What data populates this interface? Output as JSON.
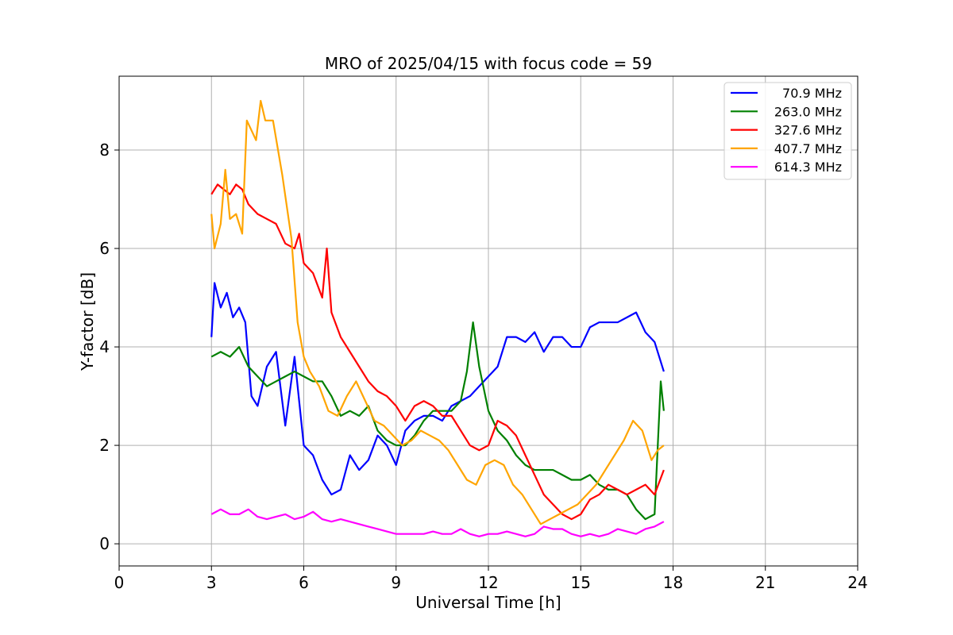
{
  "chart_data": {
    "type": "line",
    "title": "MRO of 2025/04/15 with focus code = 59",
    "xlabel": "Universal Time [h]",
    "ylabel": "Y-factor [dB]",
    "xlim": [
      0,
      24
    ],
    "ylim": [
      -0.45,
      9.5
    ],
    "xticks": [
      0,
      3,
      6,
      9,
      12,
      15,
      18,
      21,
      24
    ],
    "yticks": [
      0,
      2,
      4,
      6,
      8
    ],
    "grid": true,
    "legend_position": "top-right",
    "series": [
      {
        "name": "70.9 MHz",
        "color": "#0000ff",
        "x": [
          3.0,
          3.1,
          3.3,
          3.5,
          3.7,
          3.9,
          4.1,
          4.3,
          4.5,
          4.8,
          5.1,
          5.4,
          5.7,
          6.0,
          6.3,
          6.6,
          6.9,
          7.2,
          7.5,
          7.8,
          8.1,
          8.4,
          8.7,
          9.0,
          9.3,
          9.6,
          9.9,
          10.2,
          10.5,
          10.8,
          11.1,
          11.4,
          11.7,
          12.0,
          12.3,
          12.6,
          12.9,
          13.2,
          13.5,
          13.8,
          14.1,
          14.4,
          14.7,
          15.0,
          15.3,
          15.6,
          15.9,
          16.2,
          16.5,
          16.8,
          17.1,
          17.4,
          17.7
        ],
        "y": [
          4.2,
          5.3,
          4.8,
          5.1,
          4.6,
          4.8,
          4.5,
          3.0,
          2.8,
          3.6,
          3.9,
          2.4,
          3.8,
          2.0,
          1.8,
          1.3,
          1.0,
          1.1,
          1.8,
          1.5,
          1.7,
          2.2,
          2.0,
          1.6,
          2.3,
          2.5,
          2.6,
          2.6,
          2.5,
          2.8,
          2.9,
          3.0,
          3.2,
          3.4,
          3.6,
          4.2,
          4.2,
          4.1,
          4.3,
          3.9,
          4.2,
          4.2,
          4.0,
          4.0,
          4.4,
          4.5,
          4.5,
          4.5,
          4.6,
          4.7,
          4.3,
          4.1,
          3.5
        ]
      },
      {
        "name": "263.0 MHz",
        "color": "#008000",
        "x": [
          3.0,
          3.3,
          3.6,
          3.9,
          4.2,
          4.5,
          4.8,
          5.1,
          5.4,
          5.7,
          6.0,
          6.3,
          6.6,
          6.9,
          7.2,
          7.5,
          7.8,
          8.1,
          8.4,
          8.7,
          9.0,
          9.3,
          9.6,
          9.9,
          10.2,
          10.5,
          10.8,
          11.1,
          11.3,
          11.5,
          11.7,
          12.0,
          12.3,
          12.6,
          12.9,
          13.2,
          13.5,
          13.8,
          14.1,
          14.4,
          14.7,
          15.0,
          15.3,
          15.6,
          15.9,
          16.2,
          16.5,
          16.8,
          17.1,
          17.4,
          17.6,
          17.7
        ],
        "y": [
          3.8,
          3.9,
          3.8,
          4.0,
          3.6,
          3.4,
          3.2,
          3.3,
          3.4,
          3.5,
          3.4,
          3.3,
          3.3,
          3.0,
          2.6,
          2.7,
          2.6,
          2.8,
          2.3,
          2.1,
          2.0,
          2.0,
          2.2,
          2.5,
          2.7,
          2.7,
          2.7,
          2.9,
          3.5,
          4.5,
          3.6,
          2.7,
          2.3,
          2.1,
          1.8,
          1.6,
          1.5,
          1.5,
          1.5,
          1.4,
          1.3,
          1.3,
          1.4,
          1.2,
          1.1,
          1.1,
          1.0,
          0.7,
          0.5,
          0.6,
          3.3,
          2.7
        ]
      },
      {
        "name": "327.6 MHz",
        "color": "#ff0000",
        "x": [
          3.0,
          3.2,
          3.4,
          3.6,
          3.8,
          4.0,
          4.2,
          4.5,
          4.8,
          5.1,
          5.4,
          5.7,
          5.85,
          6.0,
          6.3,
          6.6,
          6.75,
          6.9,
          7.2,
          7.5,
          7.8,
          8.1,
          8.4,
          8.7,
          9.0,
          9.3,
          9.6,
          9.9,
          10.2,
          10.5,
          10.8,
          11.1,
          11.4,
          11.7,
          12.0,
          12.3,
          12.6,
          12.9,
          13.2,
          13.5,
          13.8,
          14.1,
          14.4,
          14.7,
          15.0,
          15.3,
          15.6,
          15.9,
          16.2,
          16.5,
          16.8,
          17.1,
          17.4,
          17.7
        ],
        "y": [
          7.1,
          7.3,
          7.2,
          7.1,
          7.3,
          7.2,
          6.9,
          6.7,
          6.6,
          6.5,
          6.1,
          6.0,
          6.3,
          5.7,
          5.5,
          5.0,
          6.0,
          4.7,
          4.2,
          3.9,
          3.6,
          3.3,
          3.1,
          3.0,
          2.8,
          2.5,
          2.8,
          2.9,
          2.8,
          2.6,
          2.6,
          2.3,
          2.0,
          1.9,
          2.0,
          2.5,
          2.4,
          2.2,
          1.8,
          1.4,
          1.0,
          0.8,
          0.6,
          0.5,
          0.6,
          0.9,
          1.0,
          1.2,
          1.1,
          1.0,
          1.1,
          1.2,
          1.0,
          1.5
        ]
      },
      {
        "name": "407.7 MHz",
        "color": "#ffa500",
        "x": [
          3.0,
          3.1,
          3.3,
          3.45,
          3.6,
          3.8,
          4.0,
          4.15,
          4.3,
          4.45,
          4.6,
          4.75,
          5.0,
          5.3,
          5.6,
          5.8,
          6.0,
          6.2,
          6.5,
          6.8,
          7.1,
          7.4,
          7.7,
          8.0,
          8.3,
          8.6,
          8.9,
          9.2,
          9.5,
          9.8,
          10.1,
          10.4,
          10.7,
          11.0,
          11.3,
          11.6,
          11.9,
          12.2,
          12.5,
          12.8,
          13.1,
          13.4,
          13.7,
          14.0,
          14.3,
          14.6,
          14.9,
          15.2,
          15.5,
          15.8,
          16.1,
          16.4,
          16.7,
          17.0,
          17.3,
          17.5,
          17.7
        ],
        "y": [
          6.7,
          6.0,
          6.5,
          7.6,
          6.6,
          6.7,
          6.3,
          8.6,
          8.4,
          8.2,
          9.0,
          8.6,
          8.6,
          7.5,
          6.2,
          4.5,
          3.8,
          3.5,
          3.2,
          2.7,
          2.6,
          3.0,
          3.3,
          2.9,
          2.5,
          2.4,
          2.2,
          2.0,
          2.1,
          2.3,
          2.2,
          2.1,
          1.9,
          1.6,
          1.3,
          1.2,
          1.6,
          1.7,
          1.6,
          1.2,
          1.0,
          0.7,
          0.4,
          0.5,
          0.6,
          0.7,
          0.8,
          1.0,
          1.2,
          1.5,
          1.8,
          2.1,
          2.5,
          2.3,
          1.7,
          1.9,
          2.0
        ]
      },
      {
        "name": "614.3 MHz",
        "color": "#ff00ff",
        "x": [
          3.0,
          3.3,
          3.6,
          3.9,
          4.2,
          4.5,
          4.8,
          5.1,
          5.4,
          5.7,
          6.0,
          6.3,
          6.6,
          6.9,
          7.2,
          7.5,
          7.8,
          8.1,
          8.4,
          8.7,
          9.0,
          9.3,
          9.6,
          9.9,
          10.2,
          10.5,
          10.8,
          11.1,
          11.4,
          11.7,
          12.0,
          12.3,
          12.6,
          12.9,
          13.2,
          13.5,
          13.8,
          14.1,
          14.4,
          14.7,
          15.0,
          15.3,
          15.6,
          15.9,
          16.2,
          16.5,
          16.8,
          17.1,
          17.4,
          17.7
        ],
        "y": [
          0.6,
          0.7,
          0.6,
          0.6,
          0.7,
          0.55,
          0.5,
          0.55,
          0.6,
          0.5,
          0.55,
          0.65,
          0.5,
          0.45,
          0.5,
          0.45,
          0.4,
          0.35,
          0.3,
          0.25,
          0.2,
          0.2,
          0.2,
          0.2,
          0.25,
          0.2,
          0.2,
          0.3,
          0.2,
          0.15,
          0.2,
          0.2,
          0.25,
          0.2,
          0.15,
          0.2,
          0.35,
          0.3,
          0.3,
          0.2,
          0.15,
          0.2,
          0.15,
          0.2,
          0.3,
          0.25,
          0.2,
          0.3,
          0.35,
          0.45
        ]
      }
    ]
  }
}
